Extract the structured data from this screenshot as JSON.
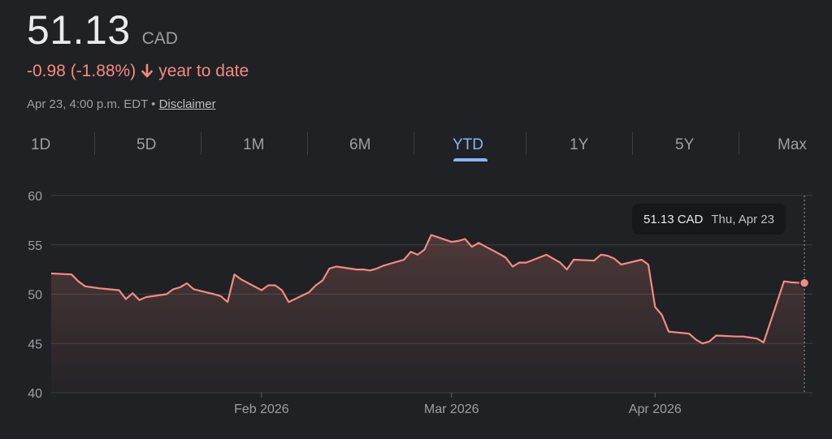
{
  "quote": {
    "price": "51.13",
    "currency": "CAD",
    "change": "-0.98 (-1.88%)",
    "change_period": "year to date",
    "timestamp": "Apr 23, 4:00 p.m. EDT",
    "separator": "•",
    "disclaimer": "Disclaimer"
  },
  "tabs": [
    {
      "label": "1D",
      "active": false
    },
    {
      "label": "5D",
      "active": false
    },
    {
      "label": "1M",
      "active": false
    },
    {
      "label": "6M",
      "active": false
    },
    {
      "label": "YTD",
      "active": true
    },
    {
      "label": "1Y",
      "active": false
    },
    {
      "label": "5Y",
      "active": false
    },
    {
      "label": "Max",
      "active": false
    }
  ],
  "tooltip": {
    "value": "51.13 CAD",
    "date": "Thu, Apr 23"
  },
  "colors": {
    "background": "#202124",
    "line": "#f28b82",
    "active_tab": "#8ab4f8",
    "grid": "#3c4043"
  },
  "chart_data": {
    "type": "area",
    "ylim": [
      40,
      60
    ],
    "yticks": [
      "60",
      "55",
      "50",
      "45",
      "40"
    ],
    "xticks": [
      {
        "label": "Feb 2026",
        "date": "2026-02-02"
      },
      {
        "label": "Mar 2026",
        "date": "2026-03-02"
      },
      {
        "label": "Apr 2026",
        "date": "2026-04-01"
      }
    ],
    "x_range": [
      "2026-01-02",
      "2026-04-23"
    ],
    "grid": true,
    "series": [
      {
        "points": [
          [
            "2026-01-02",
            52.1
          ],
          [
            "2026-01-05",
            52.0
          ],
          [
            "2026-01-06",
            51.3
          ],
          [
            "2026-01-07",
            50.8
          ],
          [
            "2026-01-08",
            50.7
          ],
          [
            "2026-01-09",
            50.6
          ],
          [
            "2026-01-12",
            50.4
          ],
          [
            "2026-01-13",
            49.5
          ],
          [
            "2026-01-14",
            50.1
          ],
          [
            "2026-01-15",
            49.4
          ],
          [
            "2026-01-16",
            49.7
          ],
          [
            "2026-01-19",
            50.0
          ],
          [
            "2026-01-20",
            50.5
          ],
          [
            "2026-01-21",
            50.7
          ],
          [
            "2026-01-22",
            51.1
          ],
          [
            "2026-01-23",
            50.5
          ],
          [
            "2026-01-26",
            50.0
          ],
          [
            "2026-01-27",
            49.8
          ],
          [
            "2026-01-28",
            49.2
          ],
          [
            "2026-01-29",
            52.0
          ],
          [
            "2026-01-30",
            51.5
          ],
          [
            "2026-02-02",
            50.4
          ],
          [
            "2026-02-03",
            50.9
          ],
          [
            "2026-02-04",
            50.9
          ],
          [
            "2026-02-05",
            50.4
          ],
          [
            "2026-02-06",
            49.2
          ],
          [
            "2026-02-09",
            50.2
          ],
          [
            "2026-02-10",
            50.9
          ],
          [
            "2026-02-11",
            51.4
          ],
          [
            "2026-02-12",
            52.6
          ],
          [
            "2026-02-13",
            52.8
          ],
          [
            "2026-02-16",
            52.5
          ],
          [
            "2026-02-17",
            52.5
          ],
          [
            "2026-02-18",
            52.4
          ],
          [
            "2026-02-19",
            52.6
          ],
          [
            "2026-02-20",
            52.9
          ],
          [
            "2026-02-23",
            53.5
          ],
          [
            "2026-02-24",
            54.3
          ],
          [
            "2026-02-25",
            54.0
          ],
          [
            "2026-02-26",
            54.5
          ],
          [
            "2026-02-27",
            56.0
          ],
          [
            "2026-03-02",
            55.3
          ],
          [
            "2026-03-03",
            55.4
          ],
          [
            "2026-03-04",
            55.6
          ],
          [
            "2026-03-05",
            54.8
          ],
          [
            "2026-03-06",
            55.2
          ],
          [
            "2026-03-09",
            54.1
          ],
          [
            "2026-03-10",
            53.7
          ],
          [
            "2026-03-11",
            52.8
          ],
          [
            "2026-03-12",
            53.2
          ],
          [
            "2026-03-13",
            53.2
          ],
          [
            "2026-03-16",
            54.0
          ],
          [
            "2026-03-17",
            53.6
          ],
          [
            "2026-03-18",
            53.2
          ],
          [
            "2026-03-19",
            52.5
          ],
          [
            "2026-03-20",
            53.5
          ],
          [
            "2026-03-23",
            53.4
          ],
          [
            "2026-03-24",
            54.0
          ],
          [
            "2026-03-25",
            53.9
          ],
          [
            "2026-03-26",
            53.6
          ],
          [
            "2026-03-27",
            53.0
          ],
          [
            "2026-03-30",
            53.5
          ],
          [
            "2026-03-31",
            53.0
          ],
          [
            "2026-04-01",
            48.7
          ],
          [
            "2026-04-02",
            47.9
          ],
          [
            "2026-04-03",
            46.2
          ],
          [
            "2026-04-06",
            46.0
          ],
          [
            "2026-04-07",
            45.4
          ],
          [
            "2026-04-08",
            45.0
          ],
          [
            "2026-04-09",
            45.2
          ],
          [
            "2026-04-10",
            45.8
          ],
          [
            "2026-04-13",
            45.7
          ],
          [
            "2026-04-14",
            45.7
          ],
          [
            "2026-04-15",
            45.6
          ],
          [
            "2026-04-16",
            45.5
          ],
          [
            "2026-04-17",
            45.1
          ],
          [
            "2026-04-20",
            51.3
          ],
          [
            "2026-04-21",
            51.2
          ],
          [
            "2026-04-23",
            51.13
          ]
        ]
      }
    ]
  }
}
